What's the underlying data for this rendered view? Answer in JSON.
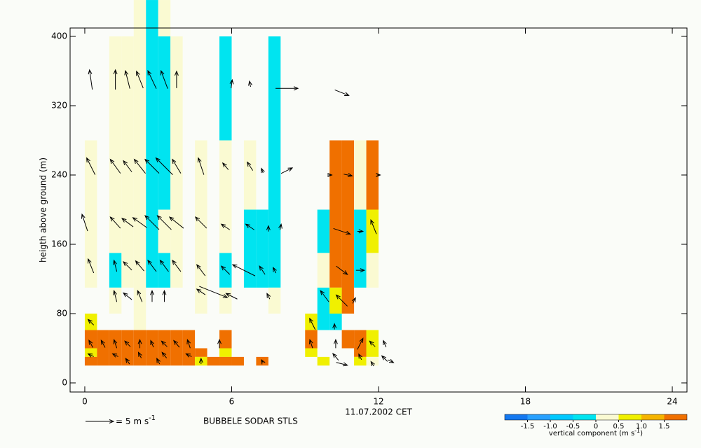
{
  "chart_data": {
    "type": "sodar",
    "y_label": "heigth above ground (m)",
    "x_label": "11.07.2002 CET",
    "station": "BUBBELE SODAR STLS",
    "xlim": [
      -0.6,
      24.6
    ],
    "ylim": [
      -10.5,
      409.7
    ],
    "xticks": [
      0,
      6,
      12,
      18,
      24
    ],
    "yticks": [
      0,
      80,
      160,
      240,
      320,
      400
    ],
    "arrow_scale_px_per_unit": 8,
    "legend_arrow": {
      "value": 5,
      "label": "= 5 m s",
      "sup": "-1"
    },
    "colorbar": {
      "label": "vertical component (m s",
      "label_sup": "-1",
      "label_end": ")",
      "lim": [
        -2,
        2
      ],
      "colors": [
        "#1478f0",
        "#28a0ff",
        "#00c8ff",
        "#00e4f0",
        "#fafad2",
        "#f0f000",
        "#f5b400",
        "#f07000"
      ],
      "ticks": [
        -1.5,
        {
          "value": -1,
          "label": "-1.0"
        },
        -0.5,
        0,
        0.5,
        {
          "value": 1,
          "label": "1.0"
        },
        1.5
      ]
    },
    "cells": [
      [
        0,
        0.5,
        110,
        280,
        0.25
      ],
      [
        0,
        0.5,
        61,
        80,
        0.75
      ],
      [
        0,
        0.5,
        40,
        61,
        1.75
      ],
      [
        0,
        0.5,
        30,
        40,
        0.75
      ],
      [
        0,
        0.5,
        20,
        30,
        1.75
      ],
      [
        0.5,
        1,
        20,
        61,
        1.75
      ],
      [
        1,
        1.5,
        150,
        400,
        0.25
      ],
      [
        1,
        1.5,
        110,
        150,
        -0.25
      ],
      [
        1,
        1.5,
        80,
        110,
        0.25
      ],
      [
        1,
        1.5,
        20,
        61,
        1.75
      ],
      [
        1.5,
        2,
        110,
        400,
        0.25
      ],
      [
        1.5,
        2,
        20,
        61,
        1.75
      ],
      [
        2,
        2.5,
        61,
        442,
        0.25
      ],
      [
        2,
        2.5,
        20,
        61,
        1.75
      ],
      [
        2.5,
        3,
        110,
        442,
        -0.25
      ],
      [
        2.5,
        3,
        20,
        61,
        1.75
      ],
      [
        3,
        3.5,
        200,
        400,
        -0.25
      ],
      [
        3,
        3.5,
        400,
        442,
        0.25
      ],
      [
        3,
        3.5,
        150,
        200,
        0.25
      ],
      [
        3,
        3.5,
        110,
        150,
        -0.25
      ],
      [
        3,
        3.5,
        20,
        61,
        1.75
      ],
      [
        3.5,
        4,
        110,
        400,
        0.25
      ],
      [
        3.5,
        4,
        20,
        61,
        1.75
      ],
      [
        4,
        4.5,
        20,
        61,
        1.75
      ],
      [
        4.5,
        5,
        80,
        280,
        0.25
      ],
      [
        4.5,
        5,
        30,
        40,
        1.75
      ],
      [
        4.5,
        5,
        20,
        30,
        0.75
      ],
      [
        5,
        5.5,
        20,
        30,
        1.75
      ],
      [
        5.5,
        6,
        280,
        400,
        -0.25
      ],
      [
        5.5,
        6,
        150,
        280,
        0.25
      ],
      [
        5.5,
        6,
        110,
        150,
        -0.25
      ],
      [
        5.5,
        6,
        80,
        110,
        0.25
      ],
      [
        5.5,
        6,
        40,
        61,
        1.75
      ],
      [
        5.5,
        6,
        30,
        40,
        0.75
      ],
      [
        5.5,
        6,
        20,
        30,
        1.75
      ],
      [
        6,
        6.5,
        20,
        30,
        1.75
      ],
      [
        6.5,
        7,
        200,
        280,
        0.25
      ],
      [
        6.5,
        7,
        110,
        200,
        -0.25
      ],
      [
        7,
        7.5,
        110,
        200,
        -0.25
      ],
      [
        7,
        7.5,
        20,
        30,
        1.75
      ],
      [
        7.5,
        8,
        110,
        400,
        -0.25
      ],
      [
        7.5,
        8,
        80,
        110,
        0.25
      ],
      [
        9,
        9.5,
        61,
        80,
        0.75
      ],
      [
        9,
        9.5,
        40,
        61,
        1.75
      ],
      [
        9,
        9.5,
        30,
        40,
        0.75
      ],
      [
        9.5,
        10,
        150,
        200,
        -0.25
      ],
      [
        9.5,
        10,
        110,
        150,
        0.25
      ],
      [
        9.5,
        10,
        61,
        110,
        -0.25
      ],
      [
        9.5,
        10,
        20,
        30,
        0.75
      ],
      [
        10,
        10.5,
        110,
        280,
        1.75
      ],
      [
        10,
        10.5,
        80,
        110,
        0.75
      ],
      [
        10,
        10.5,
        61,
        80,
        -0.25
      ],
      [
        10.5,
        11,
        80,
        280,
        1.75
      ],
      [
        10.5,
        11,
        40,
        61,
        1.75
      ],
      [
        11,
        11.5,
        200,
        280,
        0.25
      ],
      [
        11,
        11.5,
        110,
        200,
        -0.25
      ],
      [
        11,
        11.5,
        30,
        61,
        1.75
      ],
      [
        11,
        11.5,
        20,
        30,
        0.75
      ],
      [
        11.5,
        12,
        200,
        280,
        1.75
      ],
      [
        11.5,
        12,
        150,
        200,
        0.75
      ],
      [
        11.5,
        12,
        110,
        150,
        0.25
      ],
      [
        11.5,
        12,
        30,
        61,
        0.75
      ],
      [
        11.5,
        12,
        20,
        30,
        0.25
      ]
    ],
    "arrows": [
      [
        0.25,
        350,
        -0.5,
        3.5
      ],
      [
        1.25,
        350,
        0,
        3.5
      ],
      [
        1.75,
        350,
        -0.8,
        3.2
      ],
      [
        2.25,
        350,
        -1.2,
        3
      ],
      [
        2.75,
        350,
        -1.5,
        3.2
      ],
      [
        3.25,
        350,
        -1.2,
        3.2
      ],
      [
        3.75,
        350,
        0,
        3
      ],
      [
        6,
        345,
        0.2,
        1.5
      ],
      [
        6.75,
        345,
        -0.2,
        1
      ],
      [
        8.25,
        340,
        4,
        0
      ],
      [
        10.5,
        335,
        2.5,
        -1
      ],
      [
        0.25,
        250,
        -1.5,
        3
      ],
      [
        1.25,
        250,
        -1.8,
        2.5
      ],
      [
        1.75,
        250,
        -1.5,
        2
      ],
      [
        2.25,
        250,
        -2,
        2.5
      ],
      [
        2.75,
        250,
        -2.5,
        2.5
      ],
      [
        3.25,
        250,
        -3,
        3
      ],
      [
        3.75,
        250,
        -1.5,
        2.5
      ],
      [
        4.75,
        250,
        -1,
        3
      ],
      [
        5.75,
        250,
        -1,
        1.2
      ],
      [
        6.75,
        250,
        -1,
        1.5
      ],
      [
        7.25,
        245,
        -0.3,
        0.8
      ],
      [
        8.25,
        245,
        2,
        1
      ],
      [
        10,
        240,
        0.8,
        0
      ],
      [
        10.75,
        240,
        1.5,
        -0.3
      ],
      [
        12,
        240,
        0.6,
        0
      ],
      [
        0,
        185,
        -1,
        3
      ],
      [
        1.25,
        185,
        -1.8,
        2
      ],
      [
        1.75,
        185,
        -2,
        1.5
      ],
      [
        2.25,
        185,
        -2.5,
        1.8
      ],
      [
        2.75,
        185,
        -2.5,
        2.5
      ],
      [
        3.25,
        185,
        -2.5,
        2.5
      ],
      [
        3.75,
        185,
        -2.5,
        2
      ],
      [
        4.75,
        185,
        -2,
        2
      ],
      [
        5.75,
        180,
        -1.5,
        1
      ],
      [
        6.75,
        180,
        -1.5,
        1
      ],
      [
        7.5,
        178,
        0,
        1
      ],
      [
        8,
        180,
        0.2,
        1
      ],
      [
        10.5,
        175,
        3,
        -1
      ],
      [
        11.25,
        175,
        1,
        0
      ],
      [
        11.8,
        180,
        -1,
        2.5
      ],
      [
        0.25,
        135,
        -1,
        2.5
      ],
      [
        1.25,
        135,
        -0.5,
        2
      ],
      [
        1.75,
        135,
        -1.5,
        1.5
      ],
      [
        2.25,
        135,
        -1.5,
        1.8
      ],
      [
        2.75,
        135,
        -1.5,
        2
      ],
      [
        3.25,
        135,
        -1.5,
        2
      ],
      [
        3.75,
        135,
        -1.5,
        2
      ],
      [
        4.75,
        130,
        -1.5,
        2
      ],
      [
        5.75,
        130,
        -1.5,
        1.5
      ],
      [
        6.5,
        130,
        -4,
        2
      ],
      [
        7.25,
        130,
        -1,
        1.5
      ],
      [
        7.75,
        130,
        -0.5,
        1
      ],
      [
        10.5,
        130,
        2,
        -1.5
      ],
      [
        11.25,
        130,
        1.5,
        0
      ],
      [
        1.25,
        100,
        -0.5,
        2
      ],
      [
        1.75,
        100,
        -1.5,
        1.2
      ],
      [
        2.25,
        100,
        -0.8,
        2
      ],
      [
        2.75,
        100,
        0,
        2
      ],
      [
        3.25,
        100,
        0,
        2
      ],
      [
        4.75,
        105,
        -1.5,
        1
      ],
      [
        5.25,
        105,
        5,
        -2
      ],
      [
        6,
        100,
        -2,
        1
      ],
      [
        7.5,
        100,
        -0.5,
        1
      ],
      [
        9.8,
        100,
        -1.5,
        2
      ],
      [
        10.5,
        95,
        -2,
        2
      ],
      [
        11,
        95,
        0.5,
        1
      ],
      [
        0.25,
        70,
        -1,
        1
      ],
      [
        9.3,
        68,
        -1,
        2
      ],
      [
        10.2,
        65,
        0,
        1
      ],
      [
        0.25,
        45,
        -0.7,
        1.3
      ],
      [
        0.75,
        45,
        -0.7,
        1.3
      ],
      [
        1.25,
        45,
        -0.5,
        1.5
      ],
      [
        1.75,
        45,
        -1,
        1
      ],
      [
        2.25,
        45,
        0,
        1.5
      ],
      [
        2.75,
        45,
        -0.5,
        1.2
      ],
      [
        3.25,
        45,
        -1,
        1
      ],
      [
        3.75,
        45,
        -1,
        1.2
      ],
      [
        4.25,
        45,
        -0.5,
        1.5
      ],
      [
        5.5,
        45,
        0,
        1.5
      ],
      [
        9.25,
        45,
        -0.5,
        1.5
      ],
      [
        10.25,
        45,
        0,
        1.5
      ],
      [
        11.25,
        45,
        1,
        2
      ],
      [
        11.75,
        45,
        -1,
        1
      ],
      [
        12.25,
        45,
        -0.5,
        1.2
      ],
      [
        0.25,
        32,
        -1,
        0.5
      ],
      [
        1.25,
        32,
        -1,
        0.5
      ],
      [
        2.25,
        32,
        -0.5,
        1
      ],
      [
        3.25,
        32,
        -0.8,
        1
      ],
      [
        4.25,
        32,
        -1,
        0.5
      ],
      [
        10.25,
        30,
        -1,
        1.2
      ],
      [
        11.25,
        30,
        -0.5,
        1
      ],
      [
        12.25,
        28,
        -1,
        1
      ],
      [
        1.75,
        25,
        -0.7,
        1
      ],
      [
        3,
        25,
        -0.5,
        1
      ],
      [
        4.75,
        25,
        0,
        1
      ],
      [
        7.25,
        25,
        -0.3,
        0.5
      ],
      [
        10.5,
        22,
        2,
        -0.5
      ],
      [
        11.75,
        22,
        -0.5,
        0.8
      ],
      [
        12.5,
        25,
        1,
        -0.5
      ]
    ]
  }
}
